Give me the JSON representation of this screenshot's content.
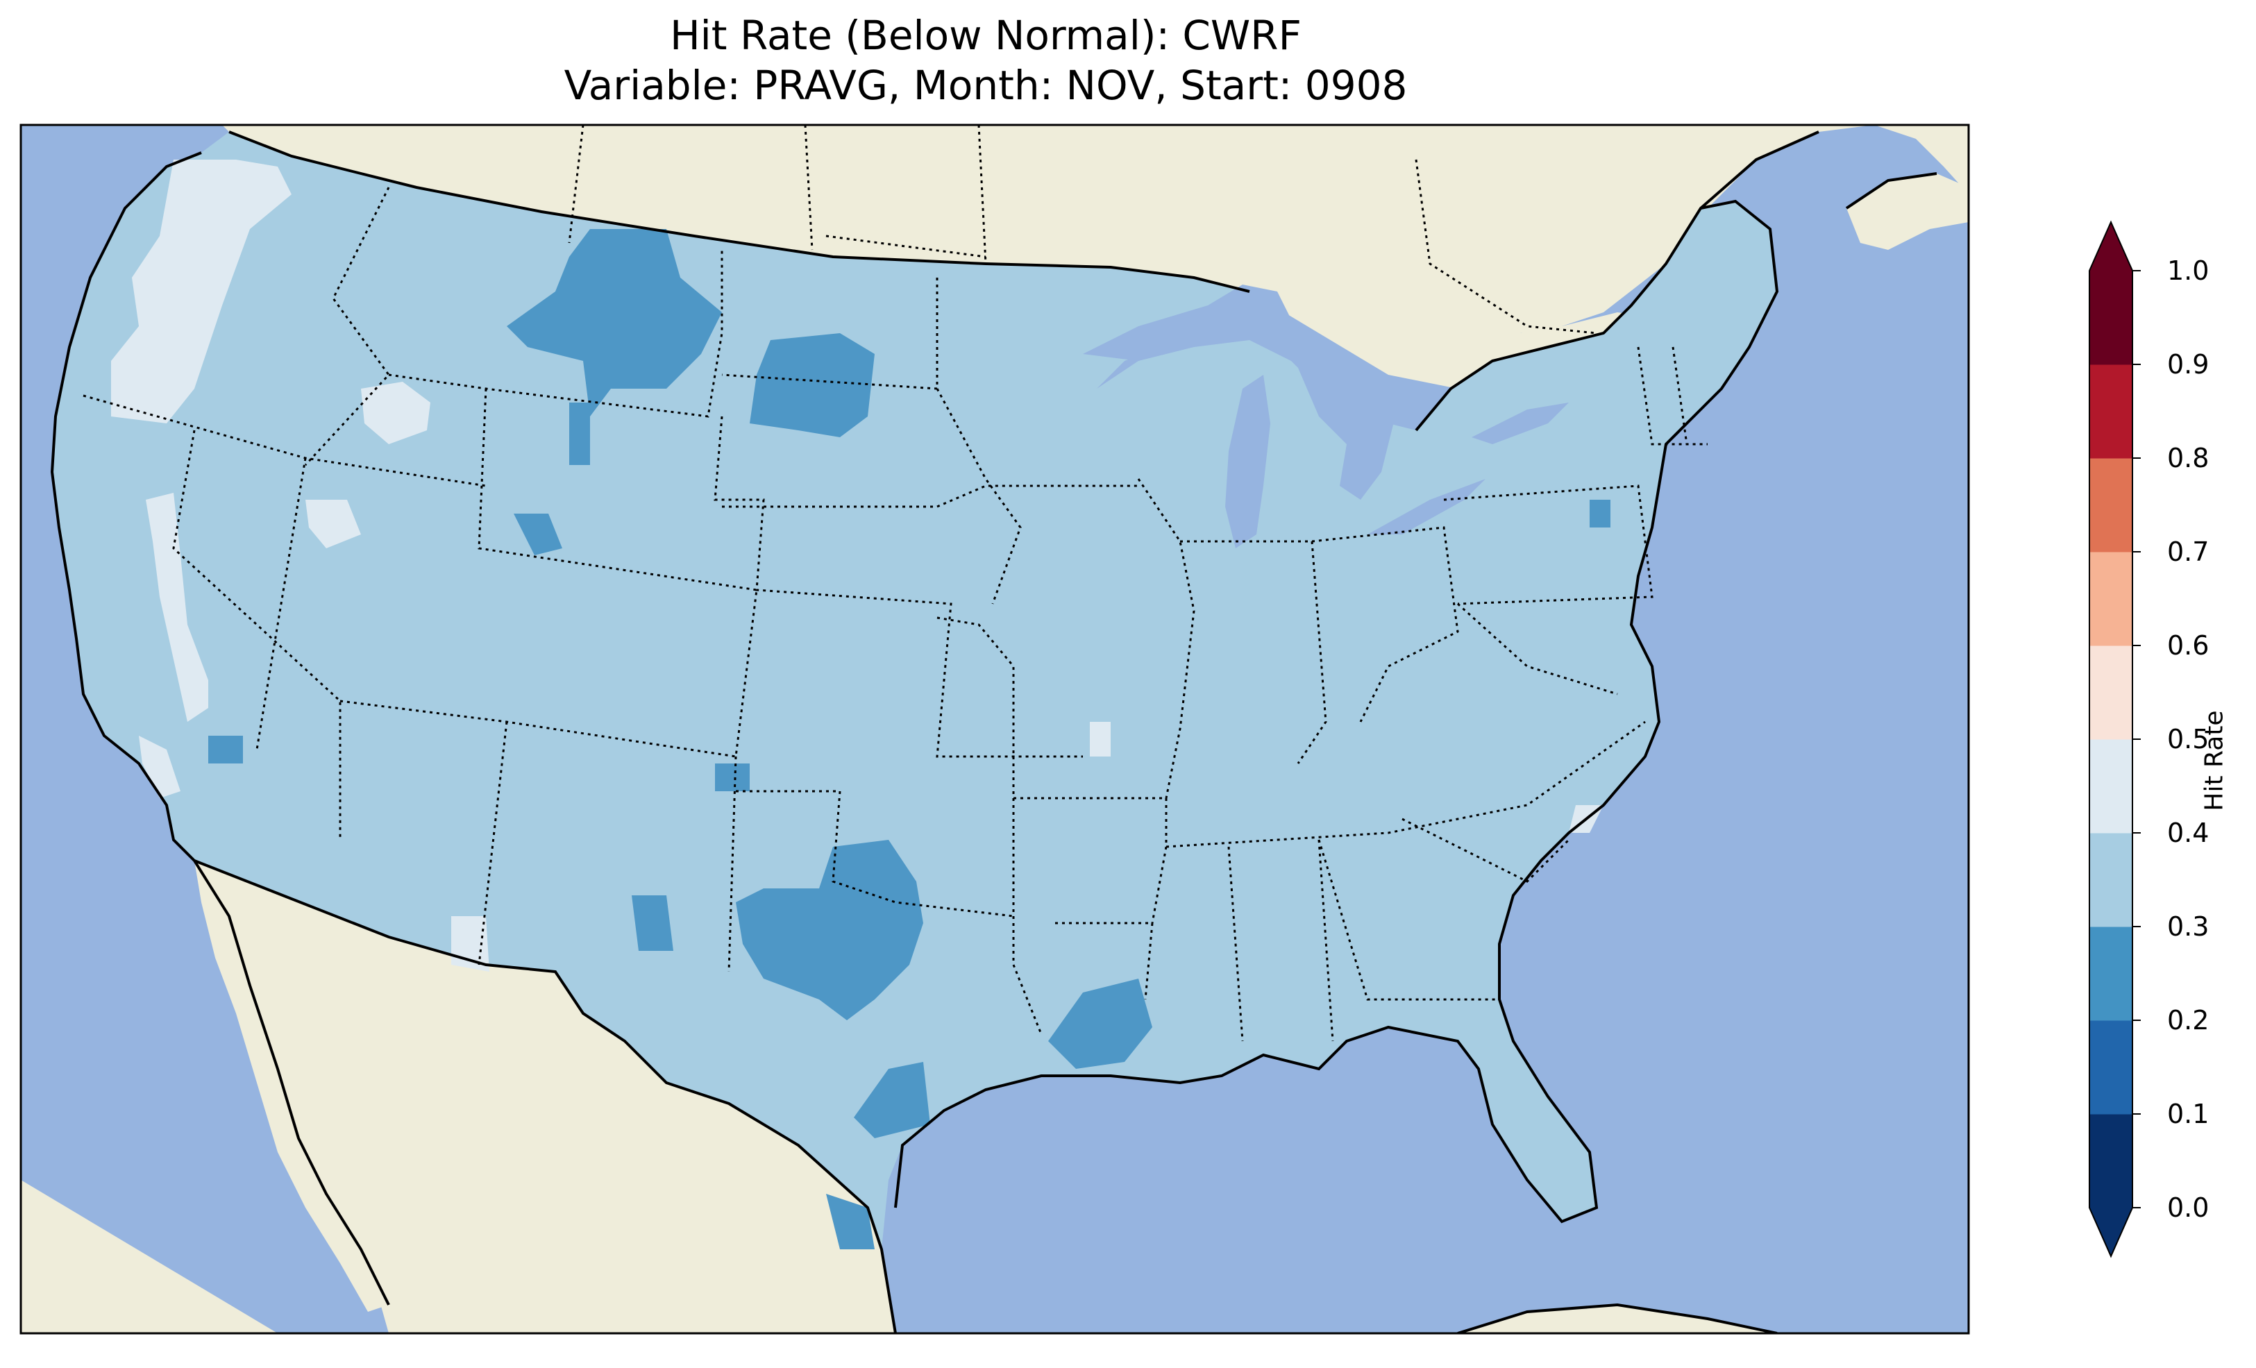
{
  "title_line1": "Hit Rate (Below Normal): CWRF",
  "title_line2": "Variable: PRAVG, Month: NOV, Start: 0908",
  "colorbar": {
    "label": "Hit Rate",
    "ticks": [
      "0.0",
      "0.1",
      "0.2",
      "0.3",
      "0.4",
      "0.5",
      "0.6",
      "0.7",
      "0.8",
      "0.9",
      "1.0"
    ],
    "colors": [
      "#08306b",
      "#2166ac",
      "#4393c3",
      "#a7cde2",
      "#dfeaf2",
      "#f9e3d9",
      "#f6b394",
      "#e07354",
      "#b2182b",
      "#67001f"
    ],
    "extend": "both"
  },
  "map": {
    "ocean_color": "#96b4e0",
    "land_color": "#efedda",
    "dominant_value_range": "0.3-0.4",
    "low_value_range": "0.2-0.3",
    "high_value_range": "0.4-0.5"
  },
  "chart_data": {
    "type": "heatmap",
    "title": "Hit Rate (Below Normal): CWRF\nVariable: PRAVG, Month: NOV, Start: 0908",
    "colorbar_label": "Hit Rate",
    "levels": [
      0.0,
      0.1,
      0.2,
      0.3,
      0.4,
      0.5,
      0.6,
      0.7,
      0.8,
      0.9,
      1.0
    ],
    "extend": "both",
    "regions": [
      {
        "area": "contiguous US (most grid cells)",
        "range": [
          0.3,
          0.4
        ]
      },
      {
        "area": "central Montana",
        "range": [
          0.2,
          0.3
        ]
      },
      {
        "area": "western South Dakota",
        "range": [
          0.2,
          0.3
        ]
      },
      {
        "area": "northwest Texas",
        "range": [
          0.2,
          0.3
        ]
      },
      {
        "area": "south Texas",
        "range": [
          0.2,
          0.3
        ]
      },
      {
        "area": "Louisiana",
        "range": [
          0.2,
          0.3
        ]
      },
      {
        "area": "southeast New Mexico",
        "range": [
          0.2,
          0.3
        ]
      },
      {
        "area": "coastal Washington/Oregon",
        "range": [
          0.4,
          0.5
        ]
      },
      {
        "area": "interior California",
        "range": [
          0.4,
          0.5
        ]
      },
      {
        "area": "southern Idaho",
        "range": [
          0.4,
          0.5
        ]
      }
    ]
  }
}
